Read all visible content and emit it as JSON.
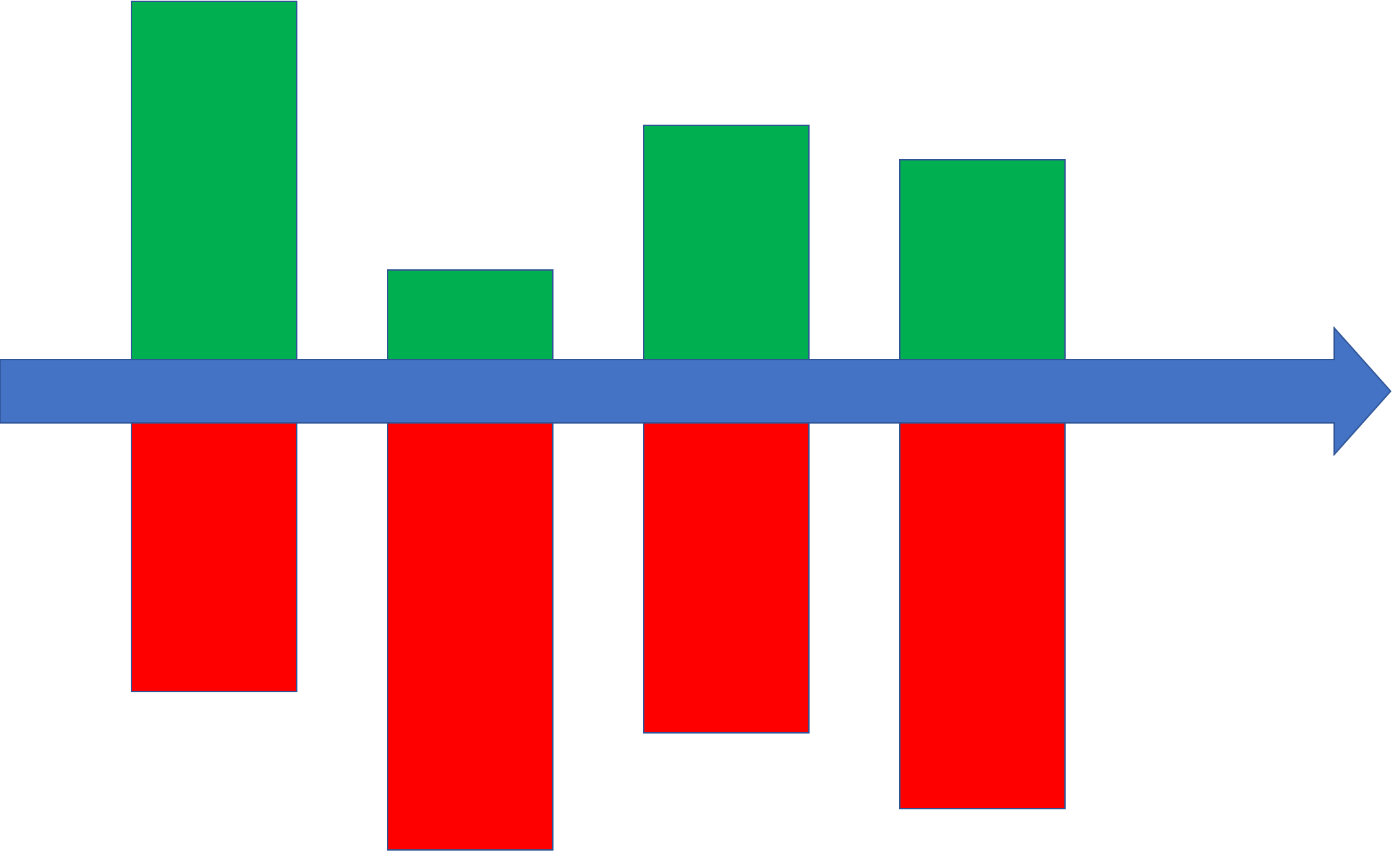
{
  "chart_data": {
    "type": "bar",
    "categories": [
      "",
      "",
      "",
      ""
    ],
    "series": [
      {
        "values": [
          5.2,
          1.3,
          3.4,
          2.9
        ],
        "color": "#00B050"
      },
      {
        "values": [
          -3.9,
          -6.2,
          -4.5,
          -5.6
        ],
        "color": "#FF0000"
      }
    ],
    "ylim": [
      -6.2,
      5.2
    ],
    "grid": false,
    "legend": "none",
    "axis": {
      "type": "arrow",
      "color": "#4472C4",
      "outline": "#2F5597"
    },
    "bar_outline_color": "#2F5597"
  }
}
